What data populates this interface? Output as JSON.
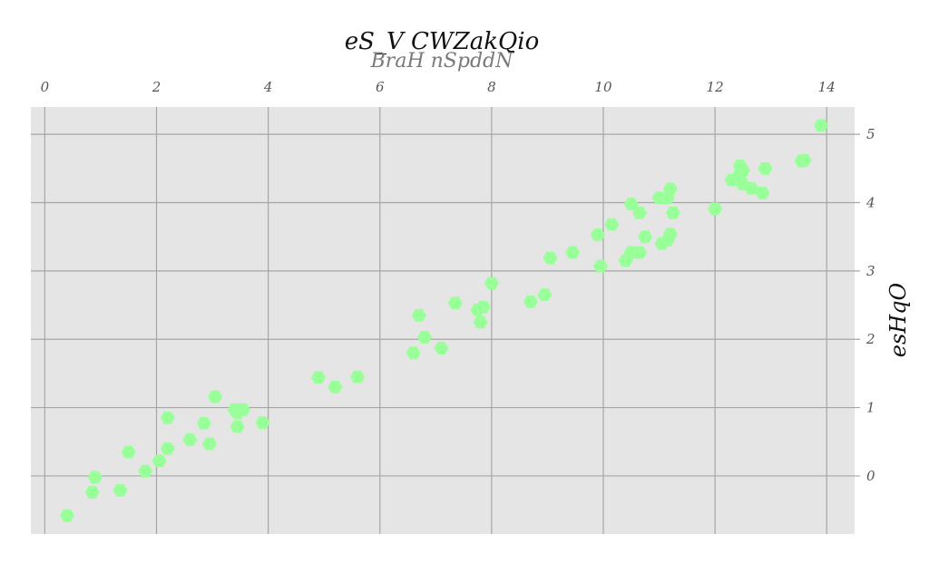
{
  "chart_data": {
    "type": "scatter",
    "title": "eS_V CWZakQio",
    "subtitle": "BraH nSpddN",
    "xlabel": "",
    "ylabel": "esHqO",
    "xlim": [
      -0.25,
      14.5
    ],
    "ylim": [
      -0.85,
      5.4
    ],
    "x_ticks": [
      0,
      2,
      4,
      6,
      8,
      10,
      12,
      14
    ],
    "y_ticks": [
      0,
      1,
      2,
      3,
      4,
      5
    ],
    "x_axis_position": "top",
    "y_axis_position": "right",
    "grid": true,
    "marker": "hexagon",
    "colors": {
      "marker": "#99ff99",
      "plot_bg": "#e5e5e5",
      "grid": "#a6a6a6"
    },
    "series": [
      {
        "points": [
          [
            0.4,
            -0.58
          ],
          [
            0.85,
            -0.24
          ],
          [
            0.9,
            -0.02
          ],
          [
            1.35,
            -0.21
          ],
          [
            1.5,
            0.35
          ],
          [
            1.8,
            0.07
          ],
          [
            2.05,
            0.22
          ],
          [
            2.2,
            0.4
          ],
          [
            2.2,
            0.85
          ],
          [
            2.6,
            0.53
          ],
          [
            2.85,
            0.77
          ],
          [
            2.95,
            0.47
          ],
          [
            3.05,
            1.16
          ],
          [
            3.4,
            0.97
          ],
          [
            3.45,
            0.72
          ],
          [
            3.45,
            0.92
          ],
          [
            3.55,
            0.97
          ],
          [
            3.9,
            0.78
          ],
          [
            4.9,
            1.44
          ],
          [
            5.2,
            1.3
          ],
          [
            5.6,
            1.45
          ],
          [
            6.6,
            1.8
          ],
          [
            6.7,
            2.35
          ],
          [
            6.8,
            2.03
          ],
          [
            7.1,
            1.87
          ],
          [
            7.35,
            2.53
          ],
          [
            7.75,
            2.43
          ],
          [
            7.8,
            2.25
          ],
          [
            7.85,
            2.47
          ],
          [
            8.0,
            2.82
          ],
          [
            8.7,
            2.55
          ],
          [
            8.95,
            2.65
          ],
          [
            9.05,
            3.19
          ],
          [
            9.45,
            3.27
          ],
          [
            9.9,
            3.53
          ],
          [
            9.95,
            3.07
          ],
          [
            10.15,
            3.68
          ],
          [
            10.4,
            3.15
          ],
          [
            10.5,
            3.27
          ],
          [
            10.5,
            3.98
          ],
          [
            10.65,
            3.85
          ],
          [
            10.65,
            3.27
          ],
          [
            10.75,
            3.5
          ],
          [
            11.0,
            4.07
          ],
          [
            11.05,
            3.4
          ],
          [
            11.15,
            3.45
          ],
          [
            11.15,
            4.07
          ],
          [
            11.2,
            4.2
          ],
          [
            11.2,
            3.54
          ],
          [
            11.25,
            3.85
          ],
          [
            12.0,
            3.91
          ],
          [
            12.3,
            4.33
          ],
          [
            12.4,
            4.35
          ],
          [
            12.45,
            4.43
          ],
          [
            12.45,
            4.54
          ],
          [
            12.5,
            4.27
          ],
          [
            12.5,
            4.47
          ],
          [
            12.65,
            4.21
          ],
          [
            12.85,
            4.14
          ],
          [
            12.9,
            4.5
          ],
          [
            13.55,
            4.61
          ],
          [
            13.6,
            4.62
          ],
          [
            13.9,
            5.13
          ]
        ]
      }
    ]
  }
}
